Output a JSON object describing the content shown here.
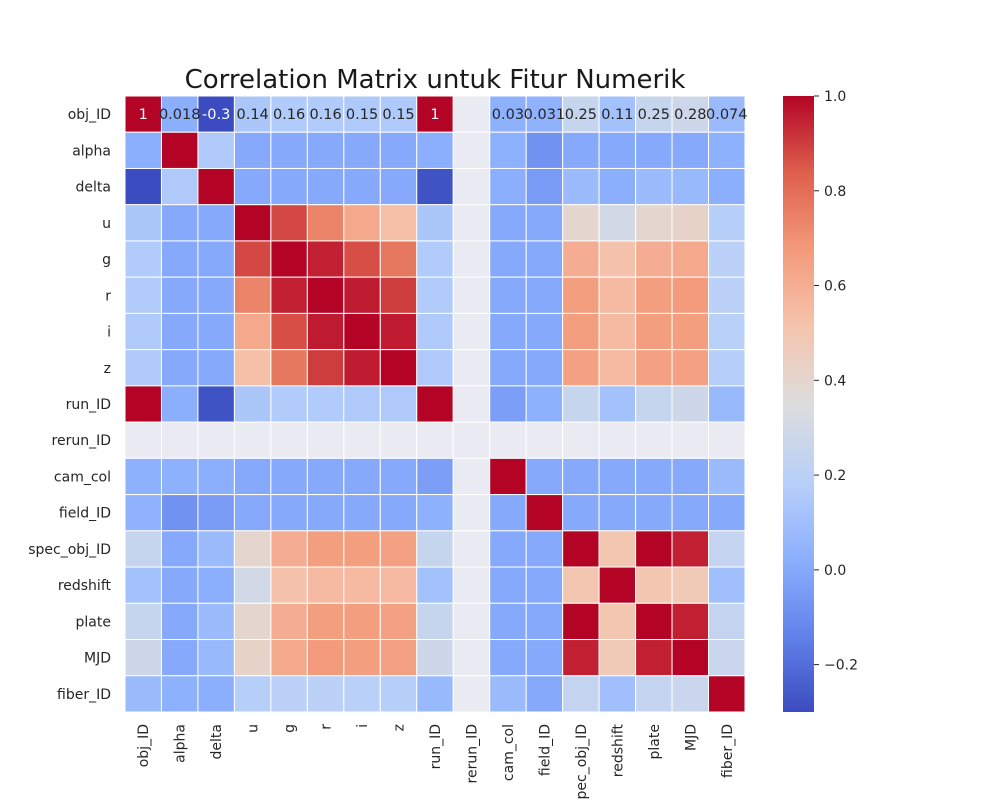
{
  "chart_data": {
    "type": "heatmap",
    "title": "Correlation Matrix untuk Fitur Numerik",
    "colormap": "coolwarm",
    "labels": [
      "obj_ID",
      "alpha",
      "delta",
      "u",
      "g",
      "r",
      "i",
      "z",
      "run_ID",
      "rerun_ID",
      "cam_col",
      "field_ID",
      "spec_obj_ID",
      "redshift",
      "plate",
      "MJD",
      "fiber_ID"
    ],
    "missing_label": "rerun_ID",
    "missing_color": "#eaeaf2",
    "vmin": -0.3,
    "vmax": 1.0,
    "colorbar_ticks": [
      1.0,
      0.8,
      0.6,
      0.4,
      0.2,
      0.0,
      -0.2
    ],
    "colorbar_tick_labels": [
      "1.0",
      "0.8",
      "0.6",
      "0.4",
      "0.2",
      "0.0",
      "−0.2"
    ],
    "row0_annotations": [
      "1",
      "0.018",
      "-0.3",
      "0.14",
      "0.16",
      "0.16",
      "0.15",
      "0.15",
      "1",
      "",
      "0.03",
      "0.031",
      "0.25",
      "0.11",
      "0.25",
      "0.28",
      "0.074"
    ],
    "matrix": [
      [
        1,
        0.018,
        -0.3,
        0.14,
        0.16,
        0.16,
        0.15,
        0.15,
        1,
        null,
        0.03,
        0.031,
        0.25,
        0.11,
        0.25,
        0.28,
        0.074
      ],
      [
        0.018,
        1,
        0.15,
        0.0,
        0.0,
        0.0,
        0.0,
        0.0,
        0.02,
        null,
        0.03,
        -0.08,
        0.0,
        0.0,
        0.0,
        0.0,
        0.03
      ],
      [
        -0.3,
        0.15,
        1,
        0.0,
        0.0,
        0.0,
        0.0,
        0.0,
        -0.28,
        null,
        0.02,
        -0.05,
        0.08,
        0.02,
        0.08,
        0.07,
        0.02
      ],
      [
        0.14,
        0.0,
        0.0,
        1,
        0.88,
        0.74,
        0.62,
        0.53,
        0.14,
        null,
        0.0,
        0.0,
        0.4,
        0.3,
        0.4,
        0.42,
        0.18
      ],
      [
        0.16,
        0.0,
        0.0,
        0.88,
        1,
        0.95,
        0.87,
        0.77,
        0.16,
        null,
        0.0,
        0.0,
        0.6,
        0.52,
        0.6,
        0.62,
        0.2
      ],
      [
        0.16,
        0.0,
        0.0,
        0.74,
        0.95,
        1,
        0.96,
        0.9,
        0.16,
        null,
        0.0,
        0.0,
        0.66,
        0.55,
        0.66,
        0.67,
        0.2
      ],
      [
        0.15,
        0.0,
        0.0,
        0.62,
        0.87,
        0.96,
        1,
        0.96,
        0.15,
        null,
        0.0,
        0.0,
        0.66,
        0.55,
        0.66,
        0.66,
        0.19
      ],
      [
        0.15,
        0.0,
        0.0,
        0.53,
        0.77,
        0.9,
        0.96,
        1,
        0.15,
        null,
        0.0,
        0.0,
        0.65,
        0.55,
        0.65,
        0.65,
        0.18
      ],
      [
        1,
        0.02,
        -0.28,
        0.14,
        0.16,
        0.16,
        0.15,
        0.15,
        1,
        null,
        -0.04,
        0.03,
        0.25,
        0.11,
        0.25,
        0.28,
        0.07
      ],
      [
        null,
        null,
        null,
        null,
        null,
        null,
        null,
        null,
        null,
        null,
        null,
        null,
        null,
        null,
        null,
        null,
        null
      ],
      [
        0.03,
        0.03,
        0.02,
        0.0,
        0.0,
        0.0,
        0.0,
        0.0,
        -0.04,
        null,
        1,
        0.0,
        0.0,
        0.0,
        0.0,
        0.0,
        0.08
      ],
      [
        0.031,
        -0.08,
        -0.05,
        0.0,
        0.0,
        0.0,
        0.0,
        0.0,
        0.03,
        null,
        0.0,
        1,
        0.0,
        0.0,
        0.0,
        0.0,
        0.0
      ],
      [
        0.25,
        0.0,
        0.08,
        0.4,
        0.6,
        0.66,
        0.66,
        0.65,
        0.25,
        null,
        0.0,
        0.0,
        1,
        0.5,
        1.0,
        0.95,
        0.24
      ],
      [
        0.11,
        0.0,
        0.02,
        0.3,
        0.52,
        0.55,
        0.55,
        0.55,
        0.11,
        null,
        0.0,
        0.0,
        0.5,
        1,
        0.5,
        0.48,
        0.1
      ],
      [
        0.25,
        0.0,
        0.08,
        0.4,
        0.6,
        0.66,
        0.66,
        0.65,
        0.25,
        null,
        0.0,
        0.0,
        1.0,
        0.5,
        1,
        0.95,
        0.24
      ],
      [
        0.28,
        0.0,
        0.07,
        0.42,
        0.62,
        0.67,
        0.66,
        0.65,
        0.28,
        null,
        0.0,
        0.0,
        0.95,
        0.48,
        0.95,
        1,
        0.26
      ],
      [
        0.074,
        0.03,
        0.02,
        0.18,
        0.2,
        0.2,
        0.19,
        0.18,
        0.07,
        null,
        0.08,
        0.0,
        0.24,
        0.1,
        0.24,
        0.26,
        1
      ]
    ]
  }
}
